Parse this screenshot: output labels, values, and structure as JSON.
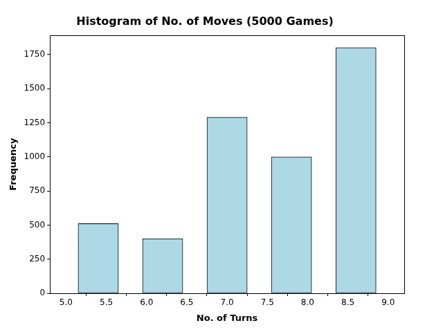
{
  "chart_data": {
    "type": "histogram",
    "title": "Histogram of No. of Moves (5000 Games)",
    "x_label": "No. of Turns",
    "y_label": "Frequency",
    "bins": [
      5.0,
      5.8,
      6.6,
      7.4,
      8.2,
      9.0
    ],
    "values": [
      510,
      400,
      1290,
      1000,
      1800
    ],
    "color": "#add8e6",
    "xlim": [
      4.8,
      9.2
    ],
    "xticks": [
      {
        "value": 5,
        "label": "5.0"
      },
      {
        "value": 5.5,
        "label": "5.5"
      },
      {
        "value": 6,
        "label": "6.0"
      },
      {
        "value": 6.5,
        "label": "6.5"
      },
      {
        "value": 7,
        "label": "7.0"
      },
      {
        "value": 7.5,
        "label": "7.5"
      },
      {
        "value": 8,
        "label": "8.0"
      },
      {
        "value": 8.5,
        "label": "8.5"
      },
      {
        "value": 9,
        "label": "9.0"
      }
    ],
    "ylim": [
      0,
      1890
    ],
    "yticks": [
      0,
      250,
      500,
      750,
      1000,
      1250,
      1500,
      1750
    ],
    "grid": false
  }
}
